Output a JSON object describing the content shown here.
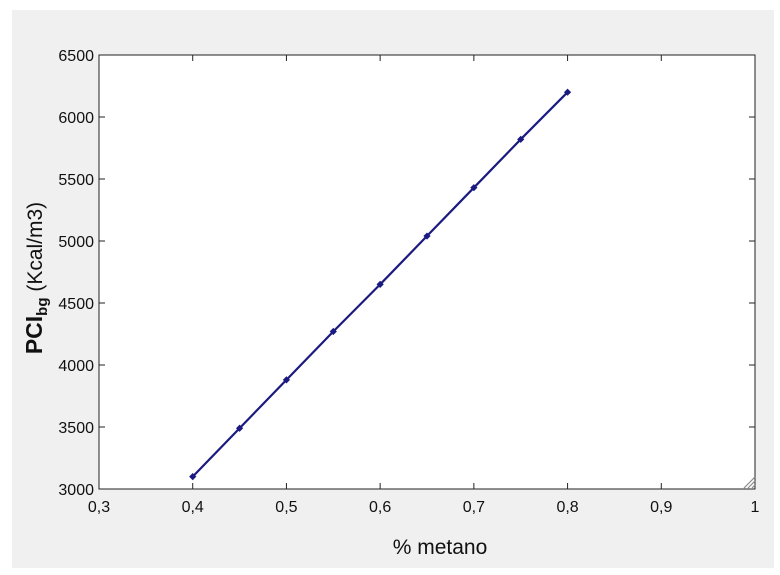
{
  "chart_data": {
    "type": "line",
    "xlabel": "% metano",
    "ylabel": {
      "main": "PCI",
      "subscript": "bg",
      "unit": " (Kcal/m3)"
    },
    "xlim": [
      0.3,
      1.0
    ],
    "ylim": [
      3000,
      6500
    ],
    "x_ticks": [
      {
        "value": 0.3,
        "label": "0,3"
      },
      {
        "value": 0.4,
        "label": "0,4"
      },
      {
        "value": 0.5,
        "label": "0,5"
      },
      {
        "value": 0.6,
        "label": "0,6"
      },
      {
        "value": 0.7,
        "label": "0,7"
      },
      {
        "value": 0.8,
        "label": "0,8"
      },
      {
        "value": 0.9,
        "label": "0,9"
      },
      {
        "value": 1.0,
        "label": "1"
      }
    ],
    "y_ticks": [
      {
        "value": 3000,
        "label": "3000"
      },
      {
        "value": 3500,
        "label": "3500"
      },
      {
        "value": 4000,
        "label": "4000"
      },
      {
        "value": 4500,
        "label": "4500"
      },
      {
        "value": 5000,
        "label": "5000"
      },
      {
        "value": 5500,
        "label": "5500"
      },
      {
        "value": 6000,
        "label": "6000"
      },
      {
        "value": 6500,
        "label": "6500"
      }
    ],
    "grid": false,
    "series": [
      {
        "color": "#1a1a80",
        "marker": "diamond",
        "x": [
          0.4,
          0.45,
          0.5,
          0.55,
          0.6,
          0.65,
          0.7,
          0.75,
          0.8
        ],
        "y": [
          3100,
          3490,
          3880,
          4270,
          4650,
          5040,
          5430,
          5820,
          6200
        ]
      }
    ]
  },
  "colors": {
    "panel_background": "#f0f0f0",
    "plot_background": "#ffffff",
    "series": "#1a1a80",
    "axis": "#222222"
  },
  "icons": {
    "resize_grip": "resize-grip-icon"
  }
}
